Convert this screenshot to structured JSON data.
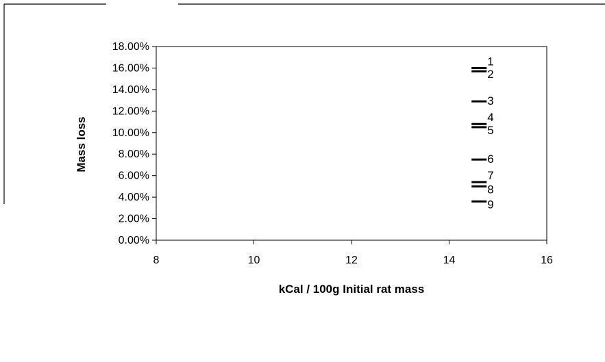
{
  "chart_data": {
    "type": "scatter",
    "title": "",
    "xlabel": "kCal / 100g Initial rat mass",
    "ylabel": "Mass loss",
    "xlim": [
      8,
      16
    ],
    "ylim": [
      0,
      0.18
    ],
    "x_ticks": [
      8,
      10,
      12,
      14,
      16
    ],
    "x_tick_labels": [
      "8",
      "10",
      "12",
      "14",
      "16"
    ],
    "y_ticks": [
      0,
      0.02,
      0.04,
      0.06,
      0.08,
      0.1,
      0.12,
      0.14,
      0.16,
      0.18
    ],
    "y_tick_labels": [
      "0.00%",
      "2.00%",
      "4.00%",
      "6.00%",
      "8.00%",
      "10.00%",
      "12.00%",
      "14.00%",
      "16.00%",
      "18.00%"
    ],
    "grid": false,
    "legend": "none",
    "marker": "dash",
    "points": [
      {
        "label": "1",
        "x": 14.6,
        "y": 0.16
      },
      {
        "label": "2",
        "x": 14.6,
        "y": 0.157
      },
      {
        "label": "3",
        "x": 14.6,
        "y": 0.129
      },
      {
        "label": "4",
        "x": 14.6,
        "y": 0.108
      },
      {
        "label": "5",
        "x": 14.6,
        "y": 0.105
      },
      {
        "label": "6",
        "x": 14.6,
        "y": 0.075
      },
      {
        "label": "7",
        "x": 14.6,
        "y": 0.054
      },
      {
        "label": "8",
        "x": 14.6,
        "y": 0.05
      },
      {
        "label": "9",
        "x": 14.6,
        "y": 0.036
      }
    ]
  }
}
